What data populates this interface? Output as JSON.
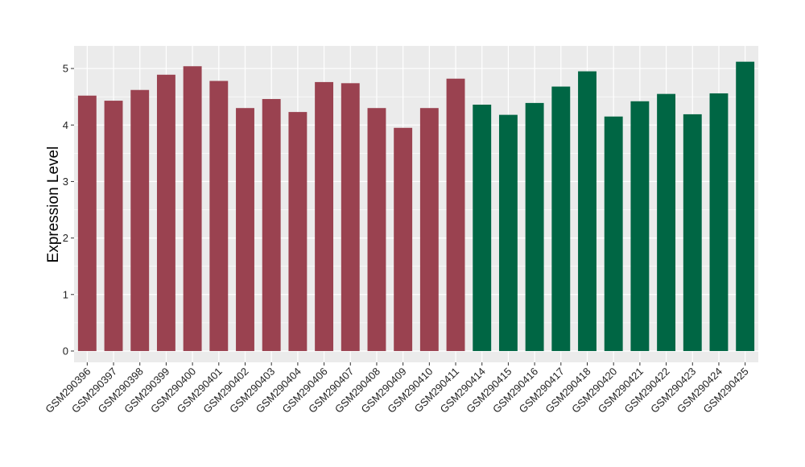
{
  "chart_data": {
    "type": "bar",
    "title": "",
    "xlabel": "",
    "ylabel": "Expression Level",
    "ylim": [
      -0.2,
      5.4
    ],
    "yticks": [
      0,
      1,
      2,
      3,
      4,
      5
    ],
    "grid": true,
    "legend": "none",
    "categories": [
      "GSM290396",
      "GSM290397",
      "GSM290398",
      "GSM290399",
      "GSM290400",
      "GSM290401",
      "GSM290402",
      "GSM290403",
      "GSM290404",
      "GSM290406",
      "GSM290407",
      "GSM290408",
      "GSM290409",
      "GSM290410",
      "GSM290411",
      "GSM290414",
      "GSM290415",
      "GSM290416",
      "GSM290417",
      "GSM290418",
      "GSM290420",
      "GSM290421",
      "GSM290422",
      "GSM290423",
      "GSM290424",
      "GSM290425"
    ],
    "values": [
      4.52,
      4.43,
      4.62,
      4.89,
      5.04,
      4.78,
      4.3,
      4.46,
      4.23,
      4.76,
      4.74,
      4.3,
      3.95,
      4.3,
      4.82,
      4.36,
      4.18,
      4.39,
      4.68,
      4.95,
      4.15,
      4.42,
      4.55,
      4.19,
      4.56,
      5.12
    ],
    "colors": [
      "#9a4250",
      "#9a4250",
      "#9a4250",
      "#9a4250",
      "#9a4250",
      "#9a4250",
      "#9a4250",
      "#9a4250",
      "#9a4250",
      "#9a4250",
      "#9a4250",
      "#9a4250",
      "#9a4250",
      "#9a4250",
      "#9a4250",
      "#006644",
      "#006644",
      "#006644",
      "#006644",
      "#006644",
      "#006644",
      "#006644",
      "#006644",
      "#006644",
      "#006644",
      "#006644"
    ],
    "panel_background": "#ebebeb",
    "grid_color": "#ffffff"
  }
}
